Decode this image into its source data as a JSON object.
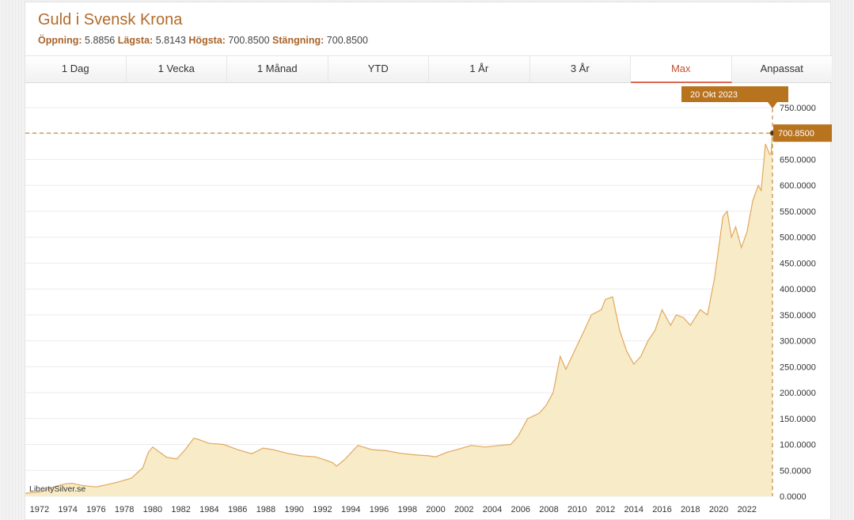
{
  "header": {
    "title": "Guld i Svensk Krona",
    "open_label": "Öppning:",
    "open_value": "5.8856",
    "low_label": "Lägsta:",
    "low_value": "5.8143",
    "high_label": "Högsta:",
    "high_value": "700.8500",
    "close_label": "Stängning:",
    "close_value": "700.8500"
  },
  "tabs": [
    {
      "label": "1 Dag"
    },
    {
      "label": "1 Vecka"
    },
    {
      "label": "1 Månad"
    },
    {
      "label": "YTD"
    },
    {
      "label": "1 År"
    },
    {
      "label": "3 År"
    },
    {
      "label": "Max",
      "active": true
    },
    {
      "label": "Anpassat"
    }
  ],
  "watermark": "LibertySilver.se",
  "crosshair": {
    "date_label": "20 Okt 2023",
    "value_label": "700.8500"
  },
  "colors": {
    "accent": "#b8731f",
    "line": "#e2a75e",
    "fill": "#f7ecc7",
    "active_tab": "#e06750"
  },
  "chart_data": {
    "type": "area",
    "title": "Guld i Svensk Krona",
    "xlabel": "",
    "ylabel": "",
    "xlim": [
      1971,
      2023.8
    ],
    "ylim": [
      0,
      750
    ],
    "yticks": [
      "0.0000",
      "50.0000",
      "100.0000",
      "150.0000",
      "200.0000",
      "250.0000",
      "300.0000",
      "350.0000",
      "400.0000",
      "450.0000",
      "500.0000",
      "550.0000",
      "600.0000",
      "650.0000",
      "700.0000",
      "750.0000"
    ],
    "ytick_values": [
      0,
      50,
      100,
      150,
      200,
      250,
      300,
      350,
      400,
      450,
      500,
      550,
      600,
      650,
      700,
      750
    ],
    "xticks": [
      "1972",
      "1974",
      "1976",
      "1978",
      "1980",
      "1982",
      "1984",
      "1986",
      "1988",
      "1990",
      "1992",
      "1994",
      "1996",
      "1998",
      "2000",
      "2002",
      "2004",
      "2006",
      "2008",
      "2010",
      "2012",
      "2014",
      "2016",
      "2018",
      "2020",
      "2022"
    ],
    "xtick_values": [
      1972,
      1974,
      1976,
      1978,
      1980,
      1982,
      1984,
      1986,
      1988,
      1990,
      1992,
      1994,
      1996,
      1998,
      2000,
      2002,
      2004,
      2006,
      2008,
      2010,
      2012,
      2014,
      2016,
      2018,
      2020,
      2022
    ],
    "grid": "horizontal",
    "series": [
      {
        "x": [
          1971.0,
          1972.0,
          1973.0,
          1973.8,
          1974.3,
          1975.0,
          1976.0,
          1976.7,
          1977.5,
          1978.5,
          1979.3,
          1979.7,
          1980.0,
          1980.5,
          1981.0,
          1981.7,
          1982.3,
          1982.9,
          1983.2,
          1984.0,
          1985.0,
          1986.0,
          1987.0,
          1987.8,
          1988.5,
          1989.5,
          1990.5,
          1991.5,
          1992.2,
          1992.7,
          1993.0,
          1993.6,
          1994.5,
          1995.5,
          1996.5,
          1997.5,
          1998.5,
          1999.5,
          2000.0,
          2000.8,
          2001.5,
          2002.5,
          2003.5,
          2004.5,
          2005.3,
          2005.8,
          2006.5,
          2007.3,
          2007.8,
          2008.3,
          2008.8,
          2009.2,
          2009.8,
          2010.5,
          2011.0,
          2011.7,
          2012.0,
          2012.5,
          2013.0,
          2013.5,
          2014.0,
          2014.5,
          2015.0,
          2015.5,
          2016.0,
          2016.6,
          2017.0,
          2017.5,
          2018.0,
          2018.7,
          2019.2,
          2019.7,
          2020.0,
          2020.3,
          2020.6,
          2020.9,
          2021.2,
          2021.6,
          2022.0,
          2022.4,
          2022.8,
          2023.0,
          2023.3,
          2023.6,
          2023.7,
          2023.8
        ],
        "y": [
          6,
          8,
          18,
          24,
          25,
          21,
          18,
          22,
          27,
          35,
          55,
          85,
          95,
          85,
          75,
          72,
          90,
          112,
          110,
          102,
          100,
          90,
          82,
          93,
          90,
          83,
          78,
          76,
          70,
          65,
          58,
          72,
          98,
          90,
          88,
          83,
          80,
          78,
          76,
          85,
          90,
          98,
          95,
          98,
          100,
          115,
          150,
          160,
          175,
          200,
          270,
          245,
          280,
          320,
          350,
          360,
          380,
          385,
          320,
          280,
          255,
          270,
          300,
          320,
          360,
          330,
          350,
          345,
          330,
          360,
          350,
          420,
          480,
          540,
          550,
          500,
          520,
          480,
          510,
          570,
          600,
          590,
          680,
          660,
          660,
          700.85
        ]
      }
    ]
  }
}
